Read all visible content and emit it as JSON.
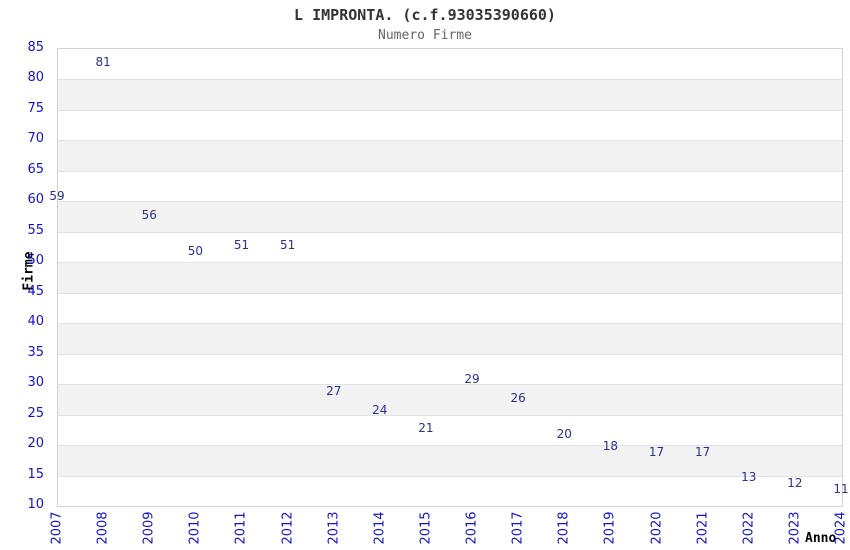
{
  "header": {
    "title": "L IMPRONTA. (c.f.93035390660)",
    "subtitle": "Numero Firme"
  },
  "chart_data": {
    "type": "line",
    "title": "L IMPRONTA. (c.f.93035390660)",
    "subtitle": "Numero Firme",
    "xlabel": "Anno",
    "ylabel": "Firme",
    "categories": [
      "2007",
      "2008",
      "2009",
      "2010",
      "2011",
      "2012",
      "2013",
      "2014",
      "2015",
      "2016",
      "2017",
      "2018",
      "2019",
      "2020",
      "2021",
      "2022",
      "2023",
      "2024"
    ],
    "values": [
      59,
      81,
      56,
      50,
      51,
      51,
      27,
      24,
      21,
      29,
      26,
      20,
      18,
      17,
      17,
      13,
      12,
      11
    ],
    "ylim": [
      10,
      85
    ],
    "ytick_step": 5,
    "grid": "horizontal-bands",
    "legend": "none",
    "point_labels_visible": true,
    "colors": {
      "line": "#87b3e6",
      "tick_label": "#1313cf",
      "point_label": "#2a3090",
      "band_light": "#ffffff",
      "band_dark": "#f2f2f2",
      "gridline": "#e2e2e2",
      "plot_border": "#d3d3d3",
      "title": "#333333",
      "subtitle": "#666666",
      "axis_title": "#000000",
      "background": "#ffffff"
    }
  }
}
